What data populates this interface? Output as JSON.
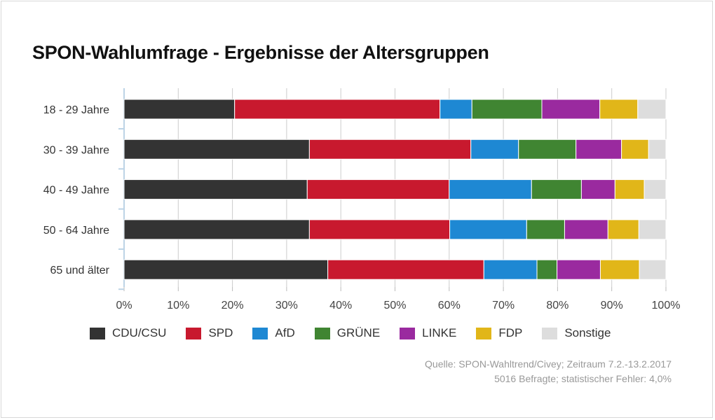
{
  "title": "SPON-Wahlumfrage - Ergebnisse der Altersgruppen",
  "chart_data": {
    "type": "bar",
    "orientation": "horizontal",
    "stacked": true,
    "categories": [
      "18 - 29 Jahre",
      "30 - 39 Jahre",
      "40 - 49 Jahre",
      "50 - 64 Jahre",
      "65 und älter"
    ],
    "series": [
      {
        "name": "CDU/CSU",
        "color": "#333333",
        "values": [
          20.4,
          34.2,
          33.8,
          34.2,
          37.6
        ]
      },
      {
        "name": "SPD",
        "color": "#c8192e",
        "values": [
          37.9,
          29.8,
          26.2,
          25.9,
          28.8
        ]
      },
      {
        "name": "AfD",
        "color": "#1e88d3",
        "values": [
          5.9,
          8.8,
          15.2,
          14.2,
          9.8
        ]
      },
      {
        "name": "GRÜNE",
        "color": "#408532",
        "values": [
          12.9,
          10.6,
          9.2,
          7.0,
          3.7
        ]
      },
      {
        "name": "LINKE",
        "color": "#9a2a9f",
        "values": [
          10.7,
          8.4,
          6.2,
          8.0,
          8.0
        ]
      },
      {
        "name": "FDP",
        "color": "#e1b619",
        "values": [
          7.0,
          5.0,
          5.4,
          5.7,
          7.2
        ]
      },
      {
        "name": "Sonstige",
        "color": "#dddddd",
        "values": [
          5.2,
          3.2,
          4.0,
          5.0,
          4.9
        ]
      }
    ],
    "xlim": [
      0,
      100
    ],
    "xticks": [
      0,
      10,
      20,
      30,
      40,
      50,
      60,
      70,
      80,
      90,
      100
    ],
    "xtick_labels": [
      "0%",
      "10%",
      "20%",
      "30%",
      "40%",
      "50%",
      "60%",
      "70%",
      "80%",
      "90%",
      "100%"
    ],
    "grid": true,
    "legend_position": "bottom"
  },
  "source": {
    "line1": "Quelle: SPON-Wahltrend/Civey; Zeitraum 7.2.-13.2.2017",
    "line2": "5016 Befragte; statistischer Fehler: 4,0%"
  }
}
